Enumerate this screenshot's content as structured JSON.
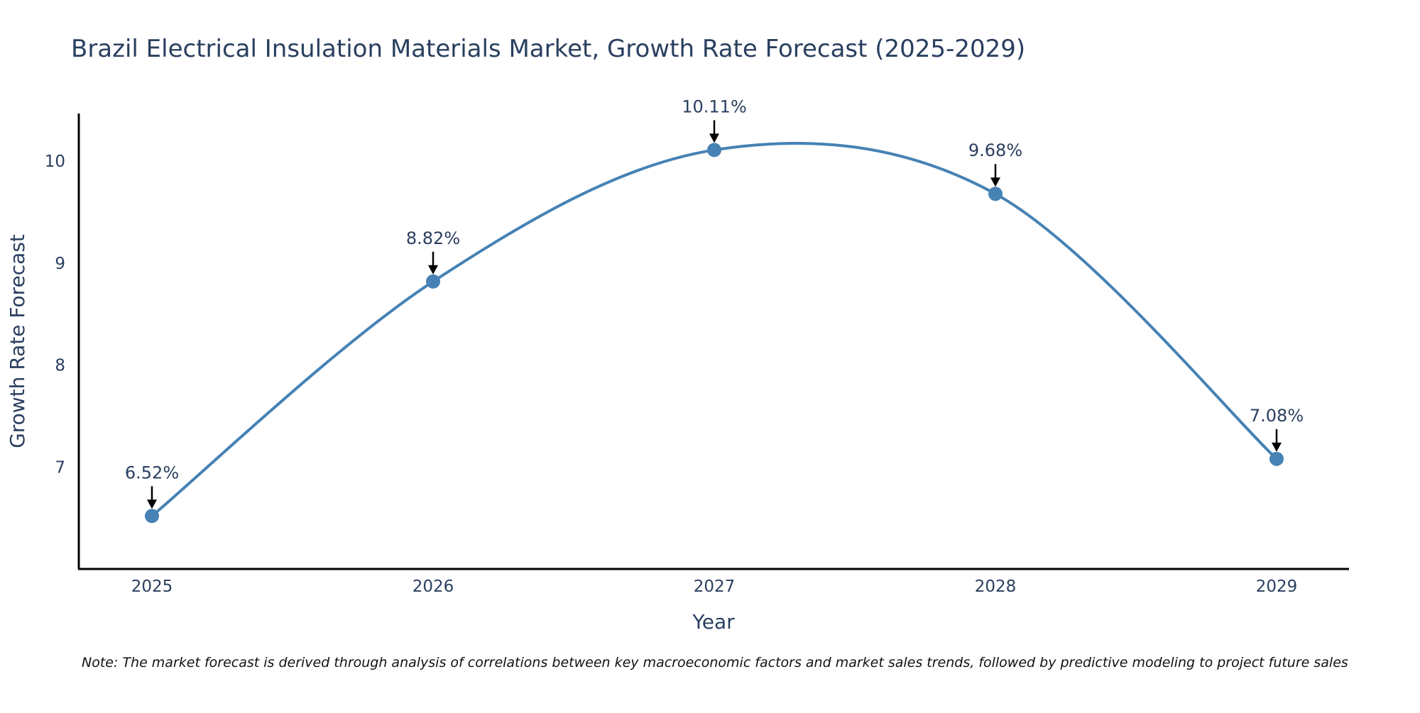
{
  "chart_data": {
    "type": "line",
    "title": "Brazil Electrical Insulation Materials Market, Growth Rate Forecast (2025-2029)",
    "xlabel": "Year",
    "ylabel": "Growth Rate Forecast",
    "categories": [
      "2025",
      "2026",
      "2027",
      "2028",
      "2029"
    ],
    "series": [
      {
        "name": "Growth Rate Forecast",
        "values": [
          6.52,
          8.82,
          10.11,
          9.68,
          7.08
        ],
        "labels": [
          "6.52%",
          "8.82%",
          "10.11%",
          "9.68%",
          "7.08%"
        ]
      }
    ],
    "yticks": [
      7,
      8,
      9,
      10
    ],
    "ytick_labels": [
      "7",
      "8",
      "9",
      "10"
    ],
    "ylim": [
      6.0,
      10.6
    ],
    "grid": false,
    "line_shape": "spline",
    "line_color": "#4682b4",
    "marker_color": "#4682b4",
    "axis_color": "#000000",
    "note": "Note: The market forecast is derived through analysis of correlations between key macroeconomic factors and market sales trends, followed by predictive modeling to project future sales"
  }
}
